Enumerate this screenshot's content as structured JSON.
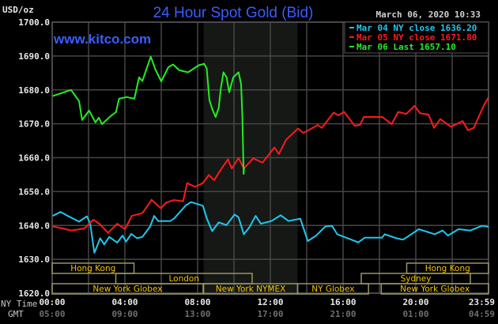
{
  "header": {
    "title": "24 Hour Spot Gold (Bid)",
    "website": "www.kitco.com",
    "timestamp": "March 06, 2020 10:33",
    "unit_label": "USD/oz"
  },
  "chart_data": {
    "type": "line",
    "title": "24 Hour Spot Gold (Bid)",
    "ylabel": "USD/oz",
    "ylim": [
      1620,
      1700
    ],
    "xlim": [
      0,
      24
    ],
    "grid": true,
    "legend_position": "top-right",
    "y_ticks": [
      "1700.0",
      "1690.0",
      "1680.0",
      "1670.0",
      "1660.0",
      "1650.0",
      "1640.0",
      "1630.0",
      "1620.0"
    ],
    "x_ticks": {
      "row_label": "NY Time",
      "hours": [
        0,
        4,
        8,
        12,
        16,
        20,
        24
      ],
      "labels": [
        "00:00",
        "04:00",
        "08:00",
        "12:00",
        "16:00",
        "20:00",
        "23:59"
      ]
    },
    "x_ticks_gmt": {
      "row_label": "GMT",
      "labels": [
        "05:00",
        "09:00",
        "13:00",
        "17:00",
        "21:00",
        "01:00",
        "04:59"
      ]
    },
    "highlight_period": {
      "start": 8.33,
      "end": 13.5
    },
    "series": [
      {
        "name": "Mar 04 NY close 1636.20",
        "color": "#1ec8f0",
        "x": [
          0.03,
          0.46,
          0.9,
          1.48,
          1.91,
          2.09,
          2.32,
          2.64,
          2.86,
          3.14,
          3.58,
          3.87,
          4.06,
          4.35,
          4.67,
          4.96,
          5.39,
          5.61,
          5.83,
          6.48,
          6.7,
          7.35,
          7.64,
          8.29,
          8.51,
          8.8,
          9.16,
          9.59,
          10.03,
          10.25,
          10.54,
          10.83,
          11.19,
          11.48,
          12.06,
          12.57,
          13.0,
          13.65,
          14.06,
          14.52,
          15.03,
          15.39,
          15.68,
          16.84,
          17.2,
          18.14,
          18.29,
          18.94,
          19.3,
          20.17,
          21.04,
          21.48,
          21.77,
          22.35,
          23.0,
          23.65,
          24.0
        ],
        "y": [
          1642.8,
          1644.0,
          1642.7,
          1641.1,
          1642.7,
          1640.5,
          1631.9,
          1636.2,
          1634.4,
          1636.6,
          1634.9,
          1637.0,
          1635.2,
          1637.5,
          1636.2,
          1636.6,
          1639.7,
          1642.8,
          1641.3,
          1641.3,
          1642.0,
          1645.9,
          1646.9,
          1645.8,
          1642.0,
          1638.3,
          1640.9,
          1640.1,
          1643.2,
          1642.4,
          1637.4,
          1639.3,
          1642.8,
          1640.5,
          1641.3,
          1643.0,
          1641.3,
          1642.0,
          1635.4,
          1637.0,
          1639.7,
          1639.9,
          1637.4,
          1635.0,
          1636.4,
          1636.4,
          1637.4,
          1636.2,
          1635.8,
          1638.9,
          1637.4,
          1638.5,
          1637.0,
          1638.9,
          1638.5,
          1639.9,
          1639.6
        ]
      },
      {
        "name": "Mar 05 NY close 1671.80",
        "color": "#ff1a1a",
        "x": [
          0.03,
          0.6,
          1.04,
          1.77,
          2.27,
          2.64,
          3.07,
          3.58,
          4.01,
          4.38,
          4.96,
          5.47,
          5.97,
          6.26,
          6.7,
          7.2,
          7.42,
          7.86,
          8.29,
          8.62,
          8.91,
          9.27,
          9.67,
          9.88,
          10.25,
          10.54,
          11.06,
          11.57,
          12.22,
          12.47,
          12.87,
          13.52,
          13.81,
          14.61,
          14.83,
          15.48,
          15.74,
          16.06,
          16.64,
          16.93,
          17.14,
          18.16,
          18.67,
          19.03,
          19.47,
          19.94,
          20.23,
          20.7,
          21.01,
          21.35,
          21.93,
          22.58,
          22.87,
          23.19,
          23.74,
          24.0
        ],
        "y": [
          1639.7,
          1639.1,
          1638.5,
          1639.1,
          1641.7,
          1640.3,
          1637.8,
          1640.5,
          1638.9,
          1642.8,
          1643.6,
          1647.6,
          1645.1,
          1646.7,
          1647.5,
          1647.1,
          1652.5,
          1651.4,
          1652.5,
          1654.9,
          1653.3,
          1656.4,
          1659.5,
          1656.8,
          1659.9,
          1656.8,
          1659.8,
          1658.5,
          1663.0,
          1661.1,
          1665.3,
          1668.6,
          1667.3,
          1669.6,
          1668.8,
          1673.3,
          1672.5,
          1673.5,
          1669.4,
          1669.6,
          1672.0,
          1672.0,
          1669.9,
          1673.5,
          1672.9,
          1675.3,
          1673.1,
          1672.7,
          1668.8,
          1671.4,
          1669.1,
          1670.8,
          1668.1,
          1668.8,
          1675.4,
          1677.8
        ]
      },
      {
        "name": "Mar 06 Last 1657.10",
        "color": "#22ee22",
        "x": [
          0.03,
          1.04,
          1.48,
          1.65,
          2.03,
          2.38,
          2.57,
          2.74,
          3.22,
          3.51,
          3.68,
          4.09,
          4.52,
          4.78,
          4.96,
          5.42,
          5.68,
          6.0,
          6.39,
          6.65,
          6.99,
          7.48,
          8.07,
          8.36,
          8.5,
          8.65,
          8.8,
          8.99,
          9.16,
          9.27,
          9.42,
          9.59,
          9.74,
          9.96,
          10.25,
          10.39,
          10.46,
          10.5,
          10.53,
          10.55
        ],
        "y": [
          1678.2,
          1680.0,
          1676.7,
          1671.1,
          1673.9,
          1670.4,
          1671.8,
          1669.9,
          1672.3,
          1673.4,
          1677.4,
          1677.9,
          1677.4,
          1683.7,
          1682.6,
          1689.8,
          1686.0,
          1682.5,
          1686.7,
          1687.5,
          1685.8,
          1685.2,
          1687.3,
          1687.7,
          1686.3,
          1677.0,
          1674.4,
          1672.0,
          1674.7,
          1680.2,
          1685.2,
          1683.7,
          1679.3,
          1683.7,
          1685.2,
          1681.7,
          1672.3,
          1662.7,
          1655.2,
          1657.1
        ]
      }
    ],
    "sessions": [
      {
        "name": "Hong Kong",
        "start": 0,
        "end": 4.5,
        "row": 0
      },
      {
        "name": "Hong Kong",
        "start": 19.5,
        "end": 24,
        "row": 0
      },
      {
        "name": "London",
        "start": 3.5,
        "end": 11,
        "row": 1
      },
      {
        "name": "Sydney",
        "start": 17,
        "end": 23,
        "row": 1
      },
      {
        "name": "New York Globex",
        "start": 0,
        "end": 8.3,
        "row": 2
      },
      {
        "name": "New York NYMEX",
        "start": 8.33,
        "end": 13.5,
        "row": 2
      },
      {
        "name": "NY Globex",
        "start": 13.5,
        "end": 17.4,
        "row": 2
      },
      {
        "name": "New York Globex",
        "start": 18.1,
        "end": 24,
        "row": 2
      }
    ]
  }
}
